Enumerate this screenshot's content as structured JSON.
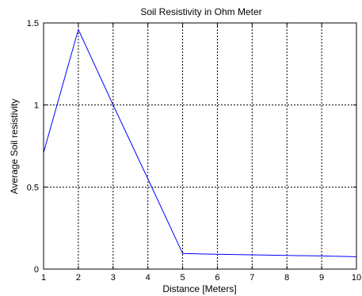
{
  "chart_data": {
    "type": "line",
    "title": "Soil Resistivity in Ohm Meter",
    "xlabel": "Distance [Meters]",
    "ylabel": "Average Soil resistivity",
    "xlim": [
      1,
      10
    ],
    "ylim": [
      0,
      1.5
    ],
    "xticks": [
      1,
      2,
      3,
      4,
      5,
      6,
      7,
      8,
      9,
      10
    ],
    "yticks": [
      0,
      0.5,
      1,
      1.5
    ],
    "xtick_labels": [
      "1",
      "2",
      "3",
      "4",
      "5",
      "6",
      "7",
      "8",
      "9",
      "10"
    ],
    "ytick_labels": [
      "0",
      "0.5",
      "1",
      "1.5"
    ],
    "grid": true,
    "series": [
      {
        "color": "#0000ff",
        "x": [
          1,
          2,
          3,
          4,
          5,
          6,
          7,
          8,
          9,
          10
        ],
        "y": [
          0.71,
          1.46,
          1.0,
          0.55,
          0.095,
          0.09,
          0.087,
          0.083,
          0.08,
          0.075
        ]
      }
    ]
  }
}
